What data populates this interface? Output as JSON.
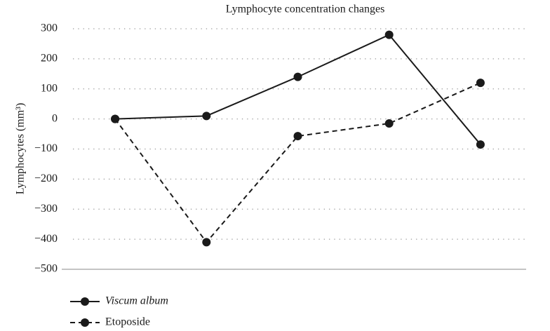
{
  "chart_data": {
    "type": "line",
    "title": "Lymphocyte concentration changes",
    "y_label": "Lymphocytes (mm³)",
    "categories": [
      null,
      null,
      null,
      null,
      null
    ],
    "series": [
      {
        "name": "Viscum album",
        "color": "#1a1a1a",
        "dash": "solid",
        "name_style": "italic",
        "values": [
          0,
          10,
          140,
          280,
          -85
        ]
      },
      {
        "name": "Etoposide",
        "color": "#1a1a1a",
        "dash": "dashed",
        "name_style": "normal",
        "values": [
          0,
          -410,
          -57,
          -15,
          120
        ]
      }
    ],
    "ylim": [
      -500,
      300
    ],
    "yticks": [
      300,
      200,
      100,
      0,
      {
        "value": -100,
        "label": "−100"
      },
      {
        "value": -200,
        "label": "−200"
      },
      {
        "value": -300,
        "label": "−300"
      },
      {
        "value": -400,
        "label": "−400"
      },
      {
        "value": -500,
        "label": "−500"
      }
    ],
    "grid": true,
    "legend": "bottom-left"
  }
}
